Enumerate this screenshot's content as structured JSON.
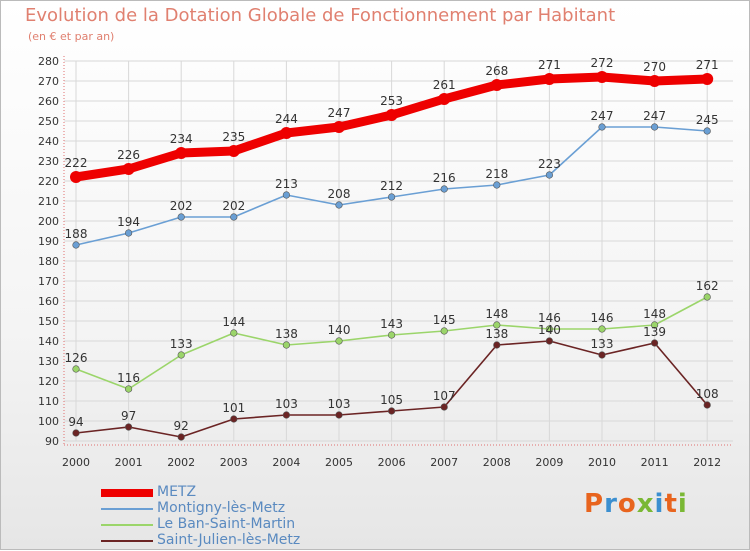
{
  "title": "Evolution de la Dotation Globale de Fonctionnement par Habitant",
  "subtitle": "(en € et par an)",
  "logo": {
    "text": "Proxiti",
    "colors": [
      "#e8641e",
      "#3b8fd0",
      "#e8641e",
      "#7ab834",
      "#3b8fd0",
      "#e8641e",
      "#7ab834"
    ]
  },
  "chart_data": {
    "type": "line",
    "title": "Evolution de la Dotation Globale de Fonctionnement par Habitant",
    "subtitle": "(en € et par an)",
    "xlabel": "",
    "ylabel": "",
    "grid": true,
    "ylim": [
      90,
      280
    ],
    "yticks": [
      90,
      100,
      110,
      120,
      130,
      140,
      150,
      160,
      170,
      180,
      190,
      200,
      210,
      220,
      230,
      240,
      250,
      260,
      270,
      280
    ],
    "x": [
      "2000",
      "2001",
      "2002",
      "2003",
      "2004",
      "2005",
      "2006",
      "2007",
      "2008",
      "2009",
      "2010",
      "2011",
      "2012"
    ],
    "series": [
      {
        "name": "METZ",
        "color": "#ee0000",
        "values": [
          222,
          226,
          234,
          235,
          244,
          247,
          253,
          261,
          268,
          271,
          272,
          270,
          271
        ]
      },
      {
        "name": "Montigny-lès-Metz",
        "color": "#6a9fd4",
        "values": [
          188,
          194,
          202,
          202,
          213,
          208,
          212,
          216,
          218,
          223,
          247,
          247,
          245
        ]
      },
      {
        "name": "Le Ban-Saint-Martin",
        "color": "#9bd56a",
        "values": [
          126,
          116,
          133,
          144,
          138,
          140,
          143,
          145,
          148,
          146,
          146,
          148,
          162
        ]
      },
      {
        "name": "Saint-Julien-lès-Metz",
        "color": "#6b2424",
        "values": [
          94,
          97,
          92,
          101,
          103,
          103,
          105,
          107,
          138,
          140,
          133,
          139,
          108
        ]
      }
    ]
  }
}
